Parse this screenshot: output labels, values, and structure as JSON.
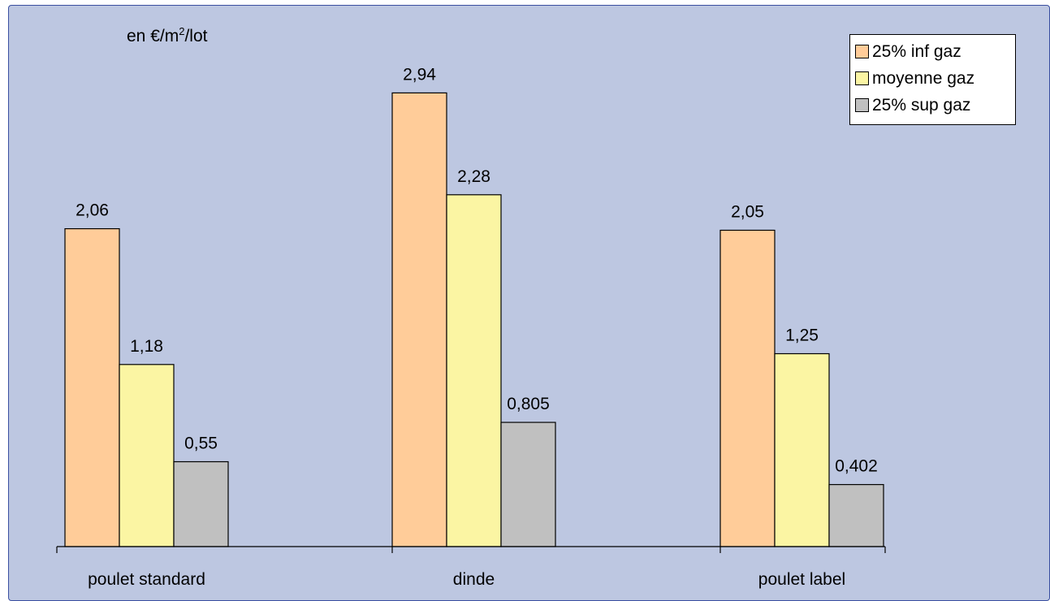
{
  "unit_label": {
    "prefix": "en €/m",
    "sup": "2",
    "suffix": "/lot"
  },
  "chart_data": {
    "type": "bar",
    "categories": [
      "poulet standard",
      "dinde",
      "poulet label"
    ],
    "series": [
      {
        "name": "25% inf gaz",
        "values": [
          2.06,
          2.94,
          2.05
        ],
        "labels": [
          "2,06",
          "2,94",
          "2,05"
        ],
        "color": "#ffcc99"
      },
      {
        "name": "moyenne gaz",
        "values": [
          1.18,
          2.28,
          1.25
        ],
        "labels": [
          "1,18",
          "2,28",
          "1,25"
        ],
        "color": "#fbf5a3"
      },
      {
        "name": "25% sup gaz",
        "values": [
          0.55,
          0.805,
          0.402
        ],
        "labels": [
          "0,55",
          "0,805",
          "0,402"
        ],
        "color": "#c0c0c0"
      }
    ],
    "ylim": [
      0,
      3.3
    ],
    "legend_position": "top-right",
    "grid": false
  },
  "colors": {
    "plot_background": "#bdc7e1",
    "frame_border": "#3a4fa0"
  }
}
